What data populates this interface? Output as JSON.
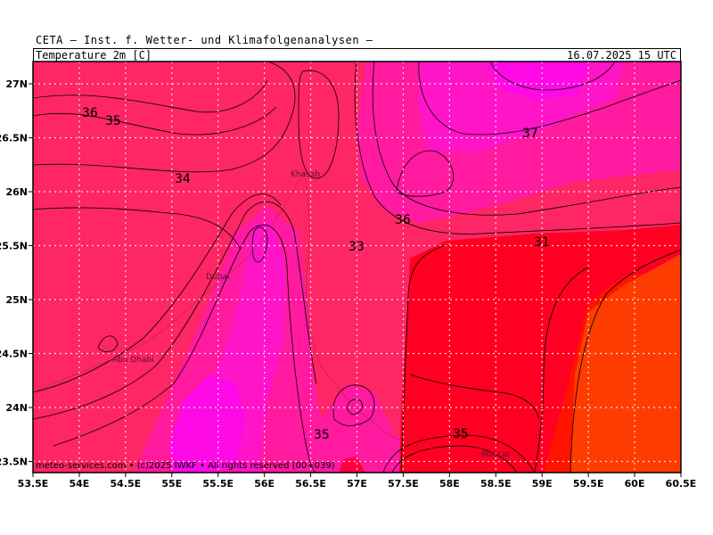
{
  "header": {
    "title": "CETA — Inst. f. Wetter- und Klimafolgenanalysen —",
    "variable": "Temperature_2m [C]",
    "valid_time": "16.07.2025 15 UTC"
  },
  "credit": "meteo-services.com • (c)2025 IWKF • All rights reserved (00+039)",
  "axes": {
    "x_ticks": [
      "53.5E",
      "54E",
      "54.5E",
      "55E",
      "55.5E",
      "56E",
      "56.5E",
      "57E",
      "57.5E",
      "58E",
      "58.5E",
      "59E",
      "59.5E",
      "60E",
      "60.5E"
    ],
    "y_ticks": [
      "27N",
      "26.5N",
      "26N",
      "25.5N",
      "25N",
      "24.5N",
      "24N",
      "23.5N"
    ]
  },
  "places": {
    "khasab": "Khasab",
    "dubai": "Dubai",
    "abu_dhabi": "Abu Dhabi",
    "muscat": "Muscat"
  },
  "contour_labels": {
    "l36a": "36",
    "l35a": "35",
    "l34": "34",
    "l37": "37",
    "l36b": "36",
    "l33": "33",
    "l31": "31",
    "l35b": "35",
    "l35c": "35"
  },
  "colors": {
    "t33": "#ff2a5a",
    "t34": "#ff1f78",
    "t35": "#ff1aa0",
    "t36": "#ff14c8",
    "t37": "#ff0ae6",
    "t31": "#ff0022",
    "t30": "#ff1400",
    "t29": "#ff3c00"
  }
}
